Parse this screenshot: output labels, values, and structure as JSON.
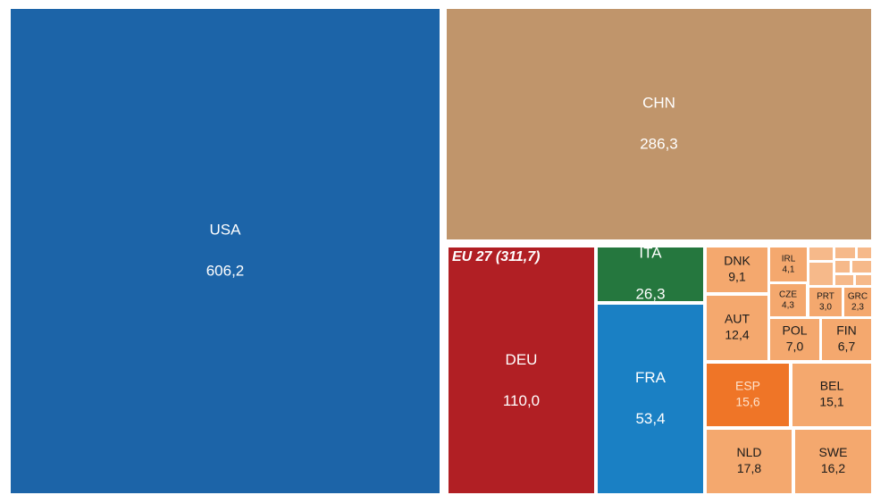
{
  "chart_data": {
    "type": "treemap",
    "group_label": "EU 27 (311,7)",
    "categories": [
      "USA",
      "CHN",
      "DEU",
      "ITA",
      "FRA",
      "DNK",
      "AUT",
      "ESP",
      "BEL",
      "NLD",
      "SWE",
      "IRL",
      "CZE",
      "PRT",
      "GRC",
      "POL",
      "FIN",
      null,
      null,
      null,
      null,
      null,
      null,
      null,
      null
    ],
    "values": [
      606.2,
      286.3,
      110.0,
      26.3,
      53.4,
      9.1,
      12.4,
      15.6,
      15.1,
      17.8,
      16.2,
      4.1,
      4.3,
      3.0,
      2.3,
      7.0,
      6.7,
      0.9,
      1.5,
      0.6,
      0.4,
      0.5,
      0.6,
      0.5,
      0.4
    ],
    "value_labels": [
      "606,2",
      "286,3",
      "110,0",
      "26,3",
      "53,4",
      "9,1",
      "12,4",
      "15,6",
      "15,1",
      "17,8",
      "16,2",
      "4,1",
      "4,3",
      "3,0",
      "2,3",
      "7,0",
      "6,7",
      null,
      null,
      null,
      null,
      null,
      null,
      null,
      null
    ],
    "colors": [
      "#1c64a8",
      "#c0956b",
      "#b11f24",
      "#25773e",
      "#1a80c4",
      "#f4a86e",
      "#f4a86e",
      "#ef7527",
      "#f4a86e",
      "#f4a86e",
      "#f4a86e",
      "#f4a86e",
      "#f4a86e",
      "#f4a86e",
      "#f4a86e",
      "#f4a86e",
      "#f4a86e",
      "#f6b98a",
      "#f6b98a",
      "#f6b98a",
      "#f6b98a",
      "#f6b98a",
      "#f6b98a",
      "#f6b98a",
      "#f6b98a"
    ]
  }
}
